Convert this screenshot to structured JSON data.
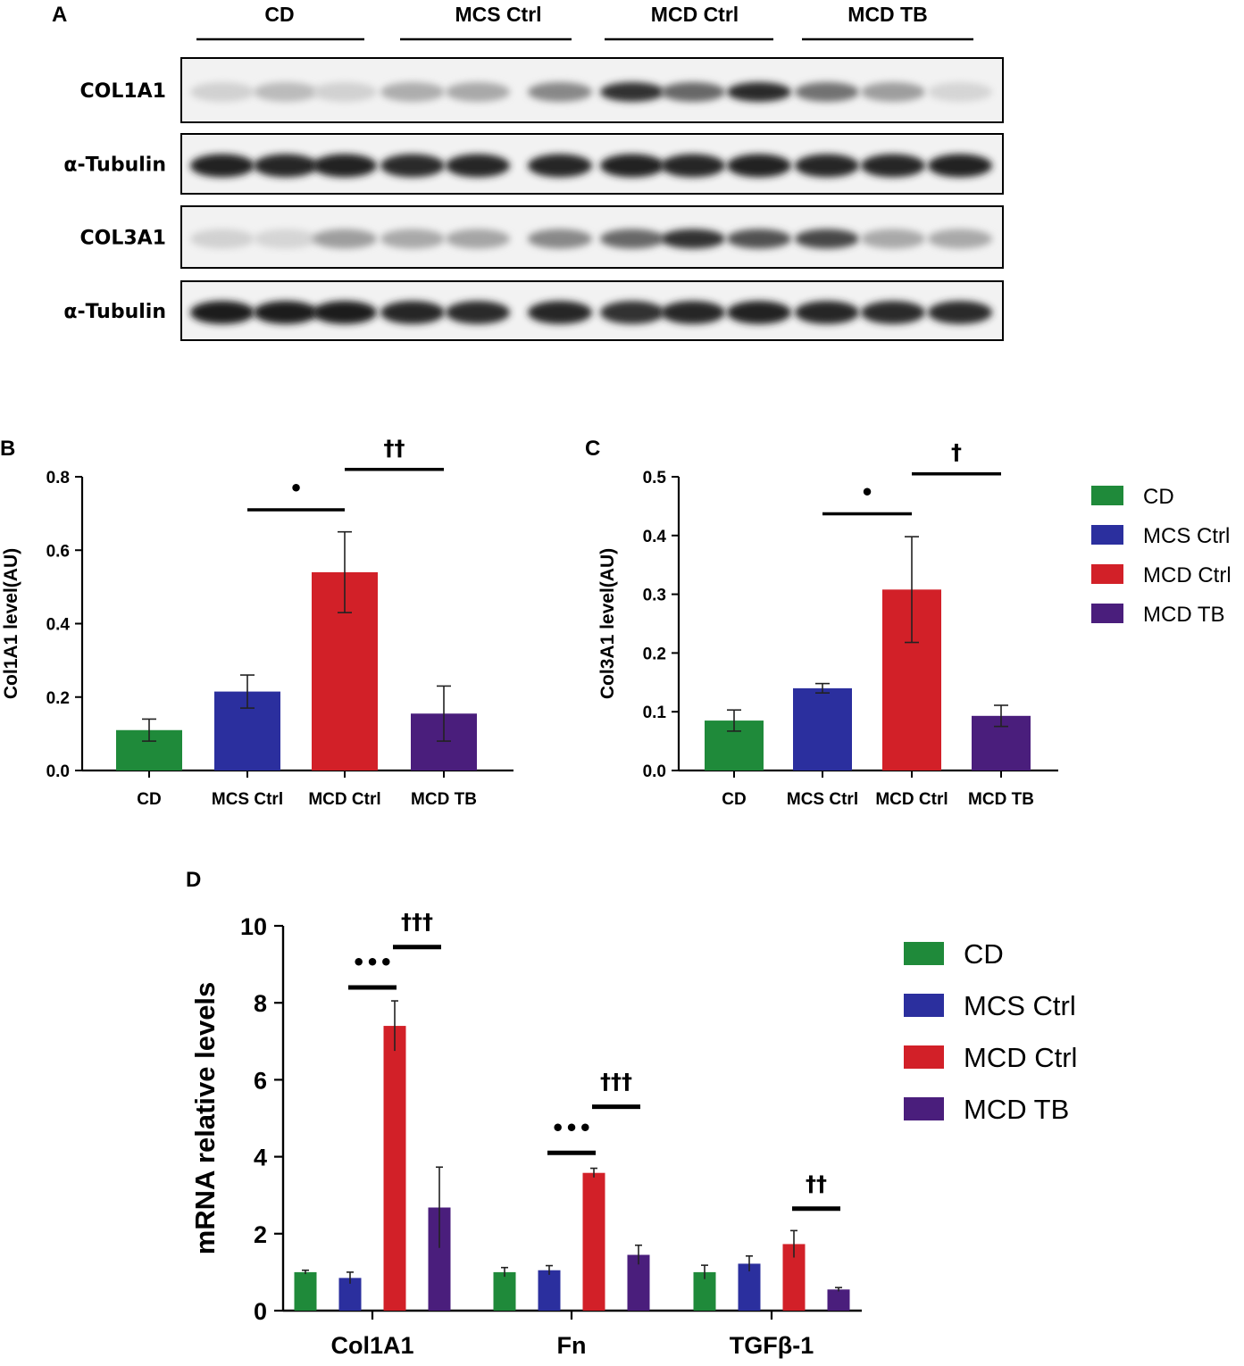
{
  "colors": {
    "CD": "#1f8a3a",
    "MCS Ctrl": "#2b2f9e",
    "MCD Ctrl": "#d22028",
    "MCD TB": "#4a1e7c"
  },
  "panels": {
    "A": "A",
    "B": "B",
    "C": "C",
    "D": "D"
  },
  "blot": {
    "groups": [
      "CD",
      "MCS Ctrl",
      "MCD Ctrl",
      "MCD TB"
    ],
    "rows": [
      {
        "label": "COL1A1",
        "intensities": [
          0.12,
          0.22,
          0.12,
          0.28,
          0.3,
          0.45,
          0.85,
          0.6,
          0.88,
          0.55,
          0.35,
          0.1
        ]
      },
      {
        "label": "α-Tubulin",
        "intensities": [
          0.92,
          0.9,
          0.92,
          0.88,
          0.9,
          0.9,
          0.92,
          0.9,
          0.92,
          0.9,
          0.9,
          0.92
        ]
      },
      {
        "label": "COL3A1",
        "intensities": [
          0.12,
          0.1,
          0.35,
          0.3,
          0.32,
          0.45,
          0.6,
          0.85,
          0.7,
          0.75,
          0.3,
          0.3
        ]
      },
      {
        "label": "α-Tubulin",
        "intensities": [
          0.95,
          0.95,
          0.95,
          0.9,
          0.88,
          0.9,
          0.85,
          0.9,
          0.92,
          0.9,
          0.88,
          0.88
        ]
      }
    ]
  },
  "chart_data": [
    {
      "panel": "B",
      "type": "bar",
      "categories": [
        "CD",
        "MCS Ctrl",
        "MCD Ctrl",
        "MCD TB"
      ],
      "values": [
        0.11,
        0.215,
        0.54,
        0.155
      ],
      "errors": [
        0.03,
        0.045,
        0.11,
        0.075
      ],
      "ylabel": "Col1A1 level(AU)",
      "ylim": [
        0,
        0.8
      ],
      "yticks": [
        "0.0",
        "0.2",
        "0.4",
        "0.6",
        "0.8"
      ],
      "significance": [
        {
          "from": "MCS Ctrl",
          "to": "MCD Ctrl",
          "label": "•",
          "y": 0.71
        },
        {
          "from": "MCD Ctrl",
          "to": "MCD TB",
          "label": "††",
          "y": 0.82
        }
      ]
    },
    {
      "panel": "C",
      "type": "bar",
      "categories": [
        "CD",
        "MCS Ctrl",
        "MCD Ctrl",
        "MCD TB"
      ],
      "values": [
        0.085,
        0.14,
        0.308,
        0.093
      ],
      "errors": [
        0.018,
        0.008,
        0.09,
        0.018
      ],
      "ylabel": "Col3A1 level(AU)",
      "ylim": [
        0,
        0.5
      ],
      "yticks": [
        "0.0",
        "0.1",
        "0.2",
        "0.3",
        "0.4",
        "0.5"
      ],
      "significance": [
        {
          "from": "MCS Ctrl",
          "to": "MCD Ctrl",
          "label": "•",
          "y": 0.437
        },
        {
          "from": "MCD Ctrl",
          "to": "MCD TB",
          "label": "†",
          "y": 0.505
        }
      ],
      "legend": [
        "CD",
        "MCS Ctrl",
        "MCD Ctrl",
        "MCD TB"
      ]
    },
    {
      "panel": "D",
      "type": "bar",
      "categories": [
        "Col1A1",
        "Fn",
        "TGFβ-1"
      ],
      "series": [
        {
          "name": "CD",
          "values": [
            1.0,
            1.0,
            1.0
          ],
          "errors": [
            0.05,
            0.12,
            0.18
          ]
        },
        {
          "name": "MCS Ctrl",
          "values": [
            0.85,
            1.05,
            1.22
          ],
          "errors": [
            0.15,
            0.12,
            0.2
          ]
        },
        {
          "name": "MCD Ctrl",
          "values": [
            7.4,
            3.58,
            1.73
          ],
          "errors": [
            0.65,
            0.12,
            0.35
          ]
        },
        {
          "name": "MCD TB",
          "values": [
            2.68,
            1.45,
            0.55
          ],
          "errors": [
            1.05,
            0.25,
            0.05
          ]
        }
      ],
      "ylabel": "mRNA relative levels",
      "ylim": [
        0,
        10
      ],
      "yticks": [
        "0",
        "2",
        "4",
        "6",
        "8",
        "10"
      ],
      "significance": [
        {
          "category": "Col1A1",
          "from": "MCS Ctrl",
          "to": "MCD Ctrl",
          "label": "•••",
          "y": 8.4
        },
        {
          "category": "Col1A1",
          "from": "MCD Ctrl",
          "to": "MCD TB",
          "label": "†††",
          "y": 9.45
        },
        {
          "category": "Fn",
          "from": "MCS Ctrl",
          "to": "MCD Ctrl",
          "label": "•••",
          "y": 4.1
        },
        {
          "category": "Fn",
          "from": "MCD Ctrl",
          "to": "MCD TB",
          "label": "†††",
          "y": 5.3
        },
        {
          "category": "TGFβ-1",
          "from": "MCD Ctrl",
          "to": "MCD TB",
          "label": "††",
          "y": 2.65
        }
      ],
      "legend": [
        "CD",
        "MCS Ctrl",
        "MCD Ctrl",
        "MCD TB"
      ]
    }
  ]
}
